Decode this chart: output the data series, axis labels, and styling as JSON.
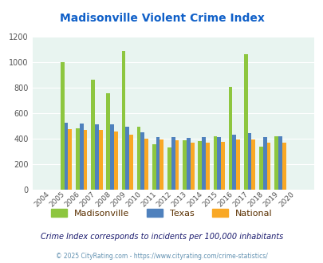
{
  "title": "Madisonville Violent Crime Index",
  "title_color": "#1060c8",
  "years": [
    2004,
    2005,
    2006,
    2007,
    2008,
    2009,
    2010,
    2011,
    2012,
    2013,
    2014,
    2015,
    2016,
    2017,
    2018,
    2019,
    2020
  ],
  "madisonville": [
    0,
    1000,
    480,
    865,
    755,
    1090,
    490,
    355,
    330,
    385,
    380,
    415,
    808,
    1065,
    335,
    415,
    0
  ],
  "texas": [
    0,
    525,
    520,
    510,
    510,
    495,
    450,
    410,
    410,
    405,
    410,
    410,
    430,
    440,
    410,
    415,
    0
  ],
  "national": [
    0,
    472,
    470,
    465,
    455,
    430,
    400,
    392,
    387,
    370,
    365,
    373,
    395,
    395,
    368,
    370,
    0
  ],
  "madisonville_color": "#8dc63f",
  "texas_color": "#4f81bd",
  "national_color": "#f9a825",
  "bg_color": "#e8f4f0",
  "grid_color": "#ffffff",
  "ylim": [
    0,
    1200
  ],
  "yticks": [
    0,
    200,
    400,
    600,
    800,
    1000,
    1200
  ],
  "subtitle": "Crime Index corresponds to incidents per 100,000 inhabitants",
  "subtitle_color": "#1a1a6e",
  "footer": "© 2025 CityRating.com - https://www.cityrating.com/crime-statistics/",
  "footer_color": "#6090b0",
  "legend_labels": [
    "Madisonville",
    "Texas",
    "National"
  ],
  "legend_colors": [
    "#8dc63f",
    "#4f81bd",
    "#f9a825"
  ],
  "legend_label_color": "#5a3000"
}
